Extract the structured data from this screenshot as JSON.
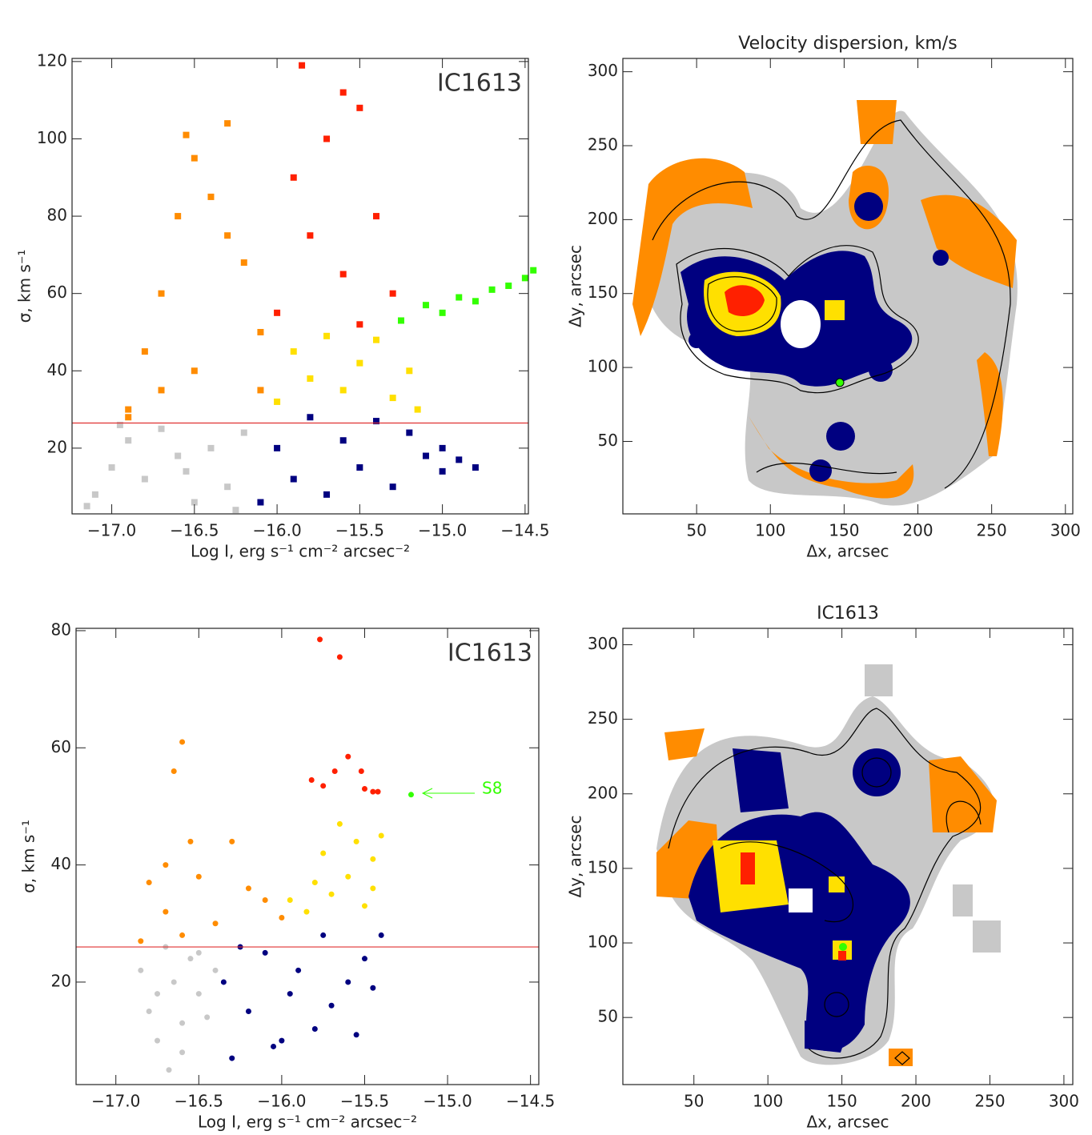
{
  "chart_data": [
    {
      "type": "scatter",
      "marker": "square",
      "xlabel": "Log I, erg s⁻¹ cm⁻² arcsec⁻²",
      "ylabel": "σ, km s⁻¹",
      "annotation": "IC1613",
      "xlim": [
        -17.24,
        -14.48
      ],
      "ylim": [
        3,
        120.8
      ],
      "xticks": [
        {
          "value": -17,
          "label": "−17.0"
        },
        {
          "value": -16.5,
          "label": "−16.5"
        },
        {
          "value": -16,
          "label": "−16.0"
        },
        {
          "value": -15.5,
          "label": "−15.5"
        },
        {
          "value": -15,
          "label": "−15.0"
        },
        {
          "value": -14.5,
          "label": "−14.5"
        }
      ],
      "yticks": [
        20,
        40,
        60,
        80,
        100,
        120
      ],
      "hline": 26.5,
      "hline_color": "#e03030",
      "series": [
        {
          "color": "#c8c8c8",
          "x": [
            -17.1,
            -17.0,
            -16.9,
            -16.8,
            -16.7,
            -16.6,
            -16.5,
            -16.4,
            -16.3,
            -16.2,
            -17.15,
            -16.95,
            -16.55,
            -16.25
          ],
          "values": [
            8,
            15,
            22,
            12,
            25,
            18,
            6,
            20,
            10,
            24,
            5,
            26,
            14,
            4
          ]
        },
        {
          "color": "#000080",
          "x": [
            -16.1,
            -16.0,
            -15.9,
            -15.8,
            -15.7,
            -15.6,
            -15.5,
            -15.4,
            -15.3,
            -15.2,
            -15.1,
            -15.0,
            -14.9,
            -14.8,
            -15.0
          ],
          "values": [
            6,
            20,
            12,
            28,
            8,
            22,
            15,
            27,
            10,
            24,
            18,
            14,
            17,
            15,
            20
          ]
        },
        {
          "color": "#ff8c00",
          "x": [
            -16.9,
            -16.8,
            -16.7,
            -16.6,
            -16.5,
            -16.55,
            -16.4,
            -16.3,
            -16.2,
            -16.1,
            -16.5,
            -16.7,
            -16.3,
            -16.1,
            -16.9
          ],
          "values": [
            30,
            45,
            60,
            80,
            95,
            101,
            85,
            75,
            68,
            50,
            40,
            35,
            104,
            35,
            28
          ]
        },
        {
          "color": "#ffe000",
          "x": [
            -16.0,
            -15.9,
            -15.8,
            -15.7,
            -15.6,
            -15.5,
            -15.4,
            -15.3,
            -15.2,
            -15.15
          ],
          "values": [
            32,
            45,
            38,
            49,
            35,
            42,
            48,
            33,
            40,
            30
          ]
        },
        {
          "color": "#ff2000",
          "x": [
            -16.0,
            -15.9,
            -15.85,
            -15.8,
            -15.7,
            -15.6,
            -15.5,
            -15.4,
            -15.3,
            -15.6,
            -15.5
          ],
          "values": [
            55,
            90,
            119,
            75,
            100,
            65,
            108,
            80,
            60,
            112,
            52
          ]
        },
        {
          "color": "#33ff00",
          "x": [
            -15.25,
            -15.1,
            -15.0,
            -14.9,
            -14.8,
            -14.7,
            -14.6,
            -14.5,
            -14.45
          ],
          "values": [
            53,
            57,
            55,
            59,
            58,
            61,
            62,
            64,
            66
          ]
        }
      ]
    },
    {
      "type": "map",
      "title": "Velocity dispersion, km/s",
      "xlabel": "Δx, arcsec",
      "ylabel": "Δy, arcsec",
      "xlim": [
        0,
        305
      ],
      "ylim": [
        1,
        309
      ],
      "xticks": [
        50,
        100,
        150,
        200,
        250,
        300
      ],
      "yticks": [
        50,
        100,
        150,
        200,
        250,
        300
      ]
    },
    {
      "type": "scatter",
      "marker": "circle",
      "xlabel": "Log I, erg s⁻¹ cm⁻² arcsec⁻²",
      "ylabel": "σ, km s⁻¹",
      "annotation": "IC1613",
      "arrow_label": "S8",
      "xlim": [
        -17.24,
        -14.45
      ],
      "ylim": [
        2.5,
        80.4
      ],
      "xticks": [
        {
          "value": -17,
          "label": "−17.0"
        },
        {
          "value": -16.5,
          "label": "−16.5"
        },
        {
          "value": -16,
          "label": "−16.0"
        },
        {
          "value": -15.5,
          "label": "−15.5"
        },
        {
          "value": -15,
          "label": "−15.0"
        },
        {
          "value": -14.5,
          "label": "−14.5"
        }
      ],
      "yticks": [
        20,
        40,
        60,
        80
      ],
      "hline": 26,
      "hline_color": "#e03030",
      "series": [
        {
          "color": "#c8c8c8",
          "x": [
            -16.85,
            -16.8,
            -16.75,
            -16.7,
            -16.65,
            -16.6,
            -16.68,
            -16.55,
            -16.5,
            -16.45,
            -16.4,
            -16.6,
            -16.75,
            -16.5
          ],
          "values": [
            22,
            15,
            10,
            26,
            20,
            13,
            5,
            24,
            18,
            14,
            22,
            8,
            18,
            25
          ]
        },
        {
          "color": "#000080",
          "x": [
            -16.35,
            -16.3,
            -16.2,
            -16.1,
            -16.0,
            -15.95,
            -15.9,
            -15.8,
            -15.75,
            -15.7,
            -15.6,
            -15.55,
            -15.5,
            -15.45,
            -15.4,
            -16.25,
            -16.05
          ],
          "values": [
            20,
            7,
            15,
            25,
            10,
            18,
            22,
            12,
            28,
            16,
            20,
            11,
            24,
            19,
            28,
            26,
            9
          ]
        },
        {
          "color": "#ff8c00",
          "x": [
            -16.85,
            -16.8,
            -16.7,
            -16.65,
            -16.6,
            -16.55,
            -16.5,
            -16.4,
            -16.3,
            -16.2,
            -16.1,
            -16.0,
            -16.6,
            -16.7
          ],
          "values": [
            27,
            37,
            32,
            56,
            61,
            44,
            38,
            30,
            44,
            36,
            34,
            31,
            28,
            40
          ]
        },
        {
          "color": "#ffe000",
          "x": [
            -15.95,
            -15.85,
            -15.8,
            -15.75,
            -15.7,
            -15.65,
            -15.6,
            -15.55,
            -15.5,
            -15.45,
            -15.4,
            -15.45
          ],
          "values": [
            34,
            32,
            37,
            42,
            35,
            47,
            38,
            44,
            33,
            41,
            45,
            36
          ]
        },
        {
          "color": "#ff2000",
          "x": [
            -15.82,
            -15.77,
            -15.75,
            -15.68,
            -15.65,
            -15.6,
            -15.52,
            -15.5,
            -15.45,
            -15.42
          ],
          "values": [
            54.5,
            78.5,
            53.5,
            56,
            75.5,
            58.5,
            56,
            53,
            52.5,
            52.5
          ]
        },
        {
          "color": "#33ff00",
          "x": [
            -15.22
          ],
          "values": [
            52
          ]
        }
      ]
    },
    {
      "type": "map",
      "title": "IC1613",
      "xlabel": "Δx, arcsec",
      "ylabel": "Δy, arcsec",
      "xlim": [
        2,
        306
      ],
      "ylim": [
        5,
        311
      ],
      "xticks": [
        50,
        100,
        150,
        200,
        250,
        300
      ],
      "yticks": [
        50,
        100,
        150,
        200,
        250,
        300
      ]
    }
  ]
}
